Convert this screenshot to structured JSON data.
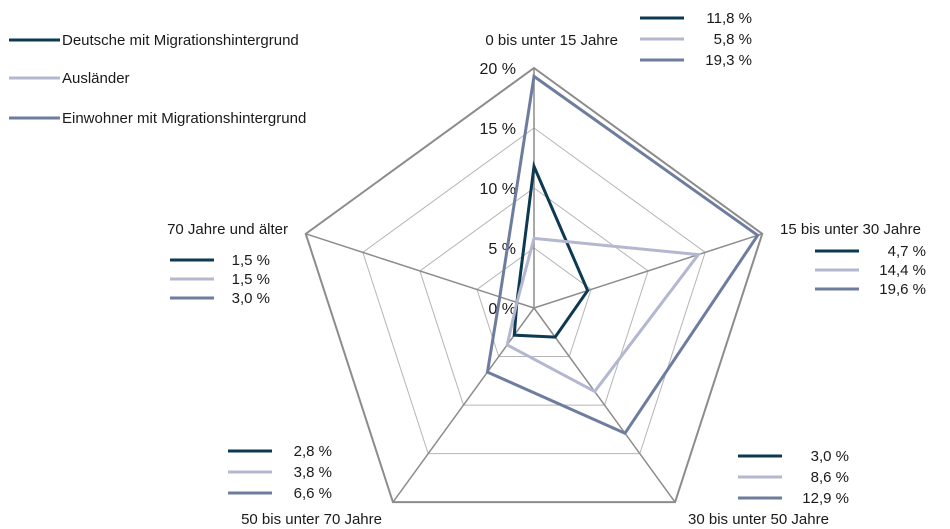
{
  "chart_data": {
    "type": "radar",
    "categories": [
      "0 bis unter 15 Jahre",
      "15 bis unter 30 Jahre",
      "30 bis unter 50 Jahre",
      "50 bis unter 70 Jahre",
      "70 Jahre und älter"
    ],
    "radial_ticks": [
      "0 %",
      "5 %",
      "10 %",
      "15 %",
      "20 %"
    ],
    "rlim": [
      0,
      20
    ],
    "grid": true,
    "legend_position": "top-left",
    "series": [
      {
        "name": "Deutsche mit Migrationshintergrund",
        "color": "#0d3a52",
        "values": [
          11.8,
          4.7,
          3.0,
          2.8,
          1.5
        ]
      },
      {
        "name": "Ausländer",
        "color": "#b3b7cf",
        "values": [
          5.8,
          14.4,
          8.6,
          3.8,
          1.5
        ]
      },
      {
        "name": "Einwohner mit Migrationshintergrund",
        "color": "#6e7d9e",
        "values": [
          19.3,
          19.6,
          12.9,
          6.6,
          3.0
        ]
      }
    ],
    "value_labels": [
      [
        "11,8 %",
        "5,8 %",
        "19,3 %"
      ],
      [
        "4,7 %",
        "14,4 %",
        "19,6 %"
      ],
      [
        "3,0 %",
        "8,6 %",
        "12,9 %"
      ],
      [
        "2,8 %",
        "3,8 %",
        "6,6 %"
      ],
      [
        "1,5 %",
        "1,5 %",
        "3,0 %"
      ]
    ]
  }
}
